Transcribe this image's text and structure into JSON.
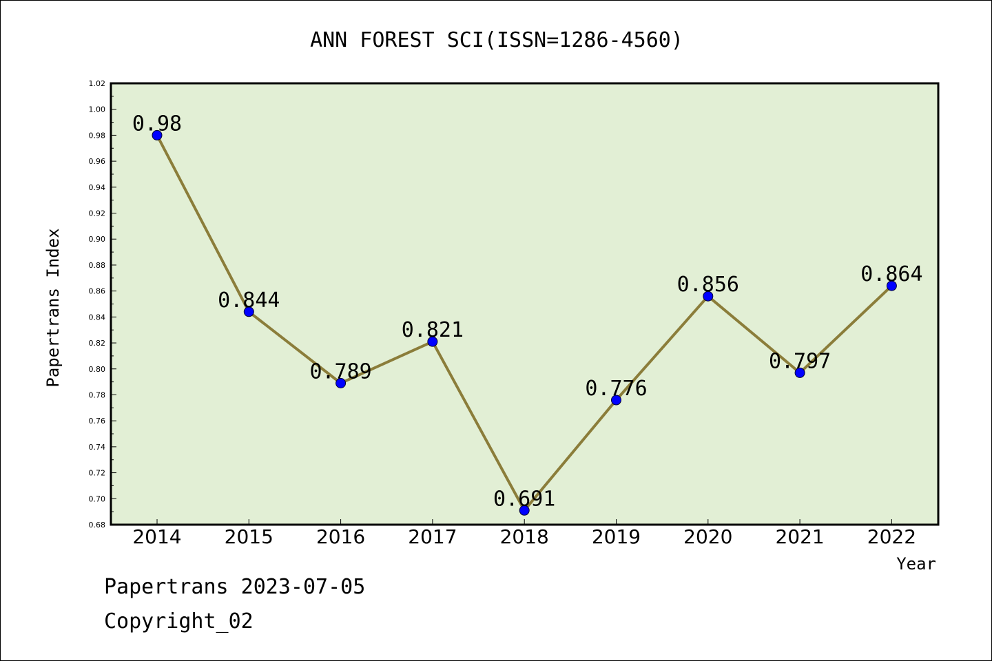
{
  "chart_data": {
    "type": "line",
    "title": "ANN FOREST SCI(ISSN=1286-4560)",
    "xlabel": "Year",
    "ylabel": "Papertrans Index",
    "categories": [
      "2014",
      "2015",
      "2016",
      "2017",
      "2018",
      "2019",
      "2020",
      "2021",
      "2022"
    ],
    "series": [
      {
        "values": [
          0.98,
          0.844,
          0.789,
          0.821,
          0.691,
          0.776,
          0.856,
          0.797,
          0.864
        ]
      }
    ],
    "data_labels": [
      "0.98",
      "0.844",
      "0.789",
      "0.821",
      "0.691",
      "0.776",
      "0.856",
      "0.797",
      "0.864"
    ],
    "ylim": [
      0.68,
      1.02
    ],
    "yticks": [
      "0.68",
      "0.70",
      "0.72",
      "0.74",
      "0.76",
      "0.78",
      "0.80",
      "0.82",
      "0.84",
      "0.86",
      "0.88",
      "0.90",
      "0.92",
      "0.94",
      "0.96",
      "0.98",
      "1.00",
      "1.02"
    ],
    "grid": false,
    "colors": {
      "plot_background": "#e2efd5",
      "line": "#8b7d3a",
      "marker": "#0000ff",
      "axis": "#000000"
    }
  },
  "footer": {
    "line1": "Papertrans 2023-07-05",
    "line2": "Copyright_02"
  }
}
